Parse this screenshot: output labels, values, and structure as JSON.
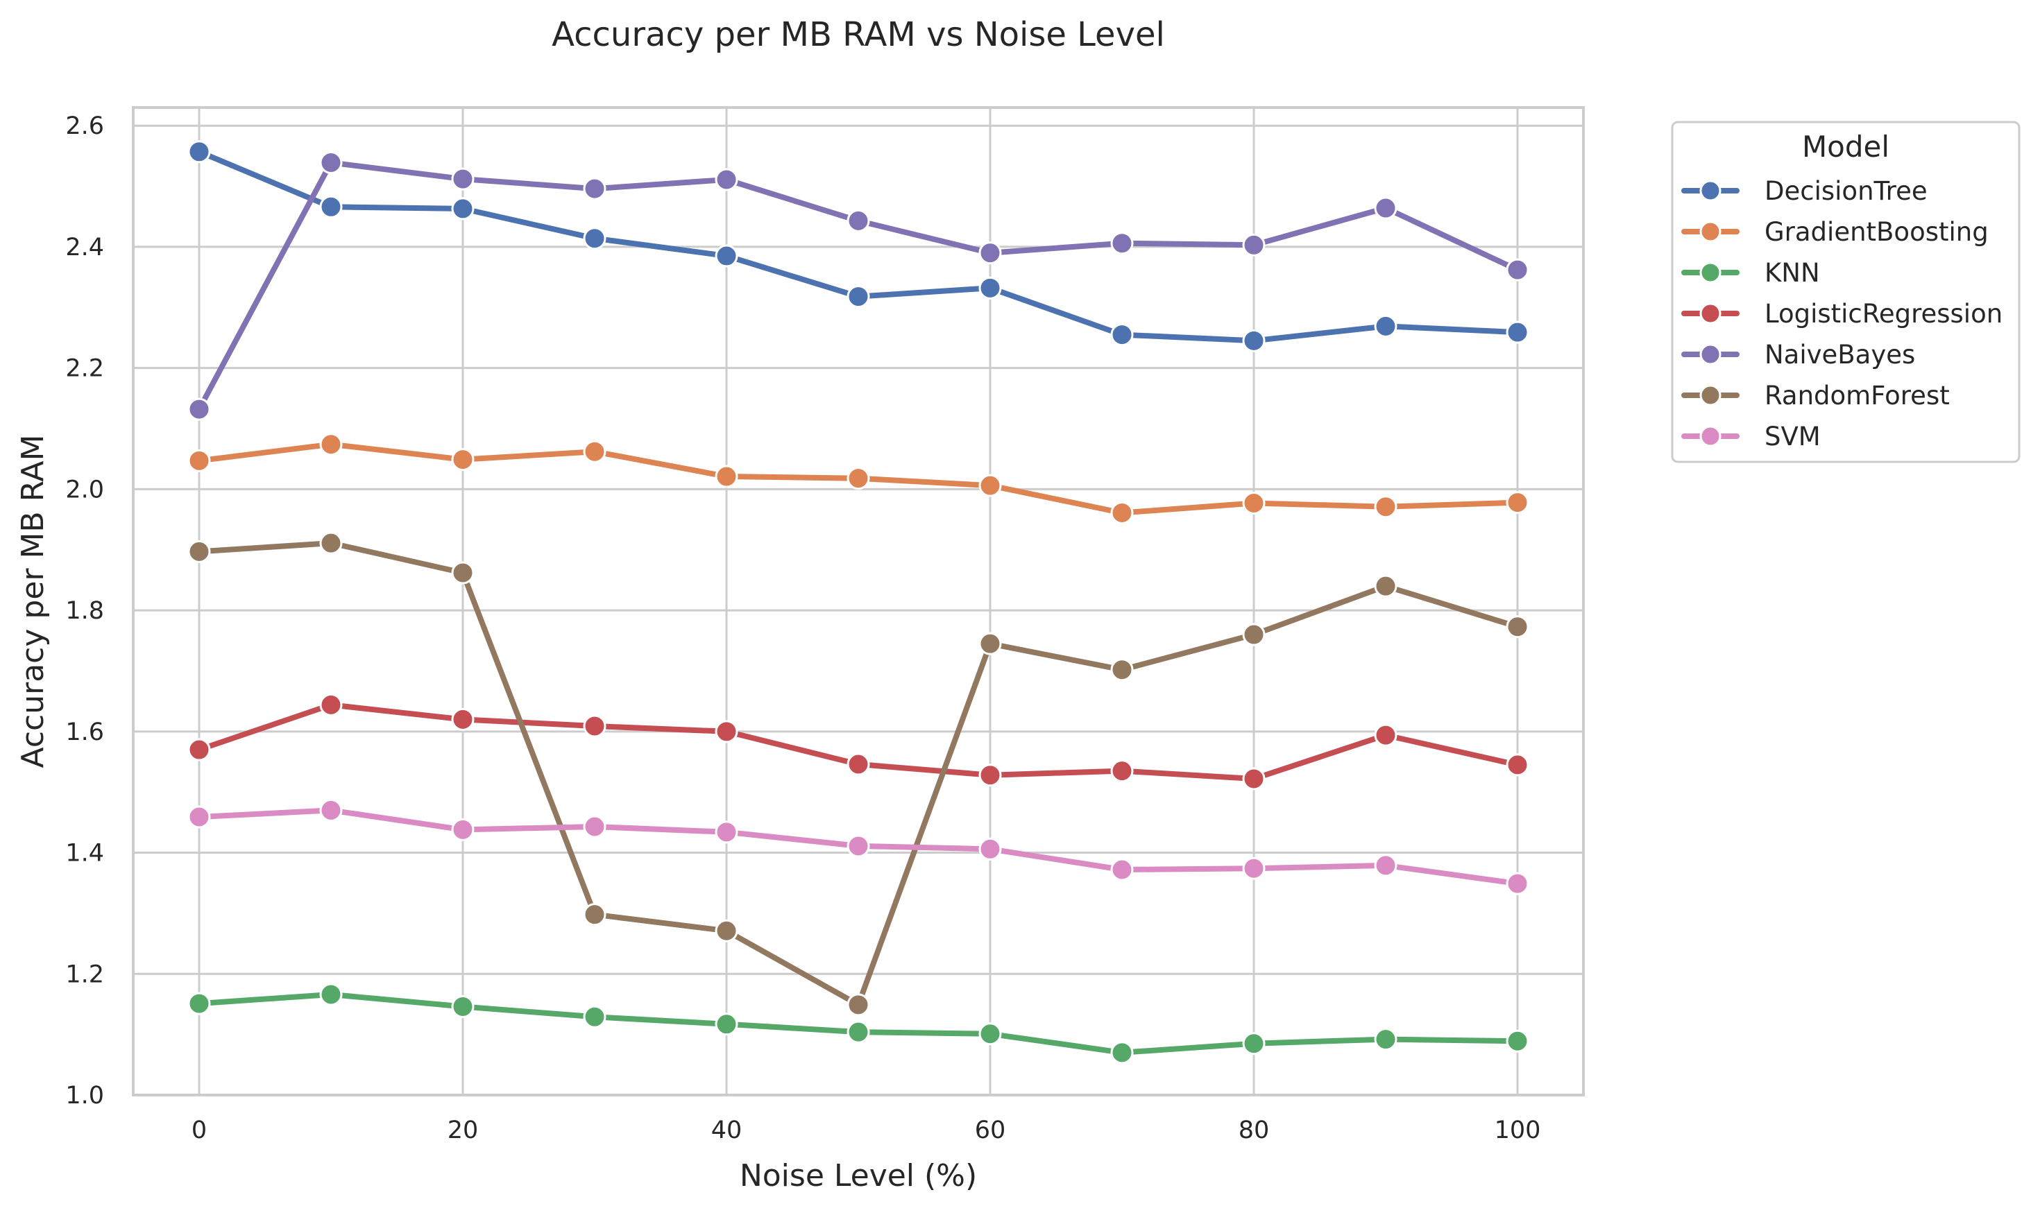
{
  "chart_data": {
    "type": "line",
    "title": "Accuracy per MB RAM vs Noise Level",
    "xlabel": "Noise Level (%)",
    "ylabel": "Accuracy per MB RAM",
    "x": [
      0,
      10,
      20,
      30,
      40,
      50,
      60,
      70,
      80,
      90,
      100
    ],
    "xticks": [
      0,
      20,
      40,
      60,
      80,
      100
    ],
    "xtick_labels": [
      "0",
      "20",
      "40",
      "60",
      "80",
      "100"
    ],
    "yticks": [
      1.0,
      1.2,
      1.4,
      1.6,
      1.8,
      2.0,
      2.2,
      2.4,
      2.6
    ],
    "ytick_labels": [
      "1.0",
      "1.2",
      "1.4",
      "1.6",
      "1.8",
      "2.0",
      "2.2",
      "2.4",
      "2.6"
    ],
    "xlim": [
      -5,
      105
    ],
    "ylim": [
      1.0,
      2.63
    ],
    "grid": true,
    "legend": {
      "title": "Model",
      "placement": "outside-top-right"
    },
    "series": [
      {
        "name": "DecisionTree",
        "color": "#4c72b0",
        "values": [
          2.557,
          2.466,
          2.463,
          2.414,
          2.385,
          2.318,
          2.332,
          2.255,
          2.245,
          2.269,
          2.259
        ]
      },
      {
        "name": "GradientBoosting",
        "color": "#dd8452",
        "values": [
          2.047,
          2.074,
          2.049,
          2.062,
          2.021,
          2.018,
          2.006,
          1.961,
          1.977,
          1.971,
          1.978
        ]
      },
      {
        "name": "KNN",
        "color": "#55a868",
        "values": [
          1.151,
          1.166,
          1.146,
          1.129,
          1.117,
          1.104,
          1.101,
          1.07,
          1.085,
          1.092,
          1.089
        ]
      },
      {
        "name": "LogisticRegression",
        "color": "#c44e52",
        "values": [
          1.57,
          1.644,
          1.62,
          1.609,
          1.6,
          1.546,
          1.528,
          1.535,
          1.522,
          1.594,
          1.545
        ]
      },
      {
        "name": "NaiveBayes",
        "color": "#8172b3",
        "values": [
          2.132,
          2.539,
          2.512,
          2.496,
          2.511,
          2.443,
          2.39,
          2.406,
          2.403,
          2.464,
          2.362
        ]
      },
      {
        "name": "RandomForest",
        "color": "#937860",
        "values": [
          1.897,
          1.911,
          1.862,
          1.298,
          1.271,
          1.149,
          1.745,
          1.702,
          1.76,
          1.84,
          1.773
        ]
      },
      {
        "name": "SVM",
        "color": "#da8bc3",
        "values": [
          1.459,
          1.47,
          1.438,
          1.443,
          1.434,
          1.411,
          1.406,
          1.372,
          1.374,
          1.379,
          1.349
        ]
      }
    ]
  }
}
